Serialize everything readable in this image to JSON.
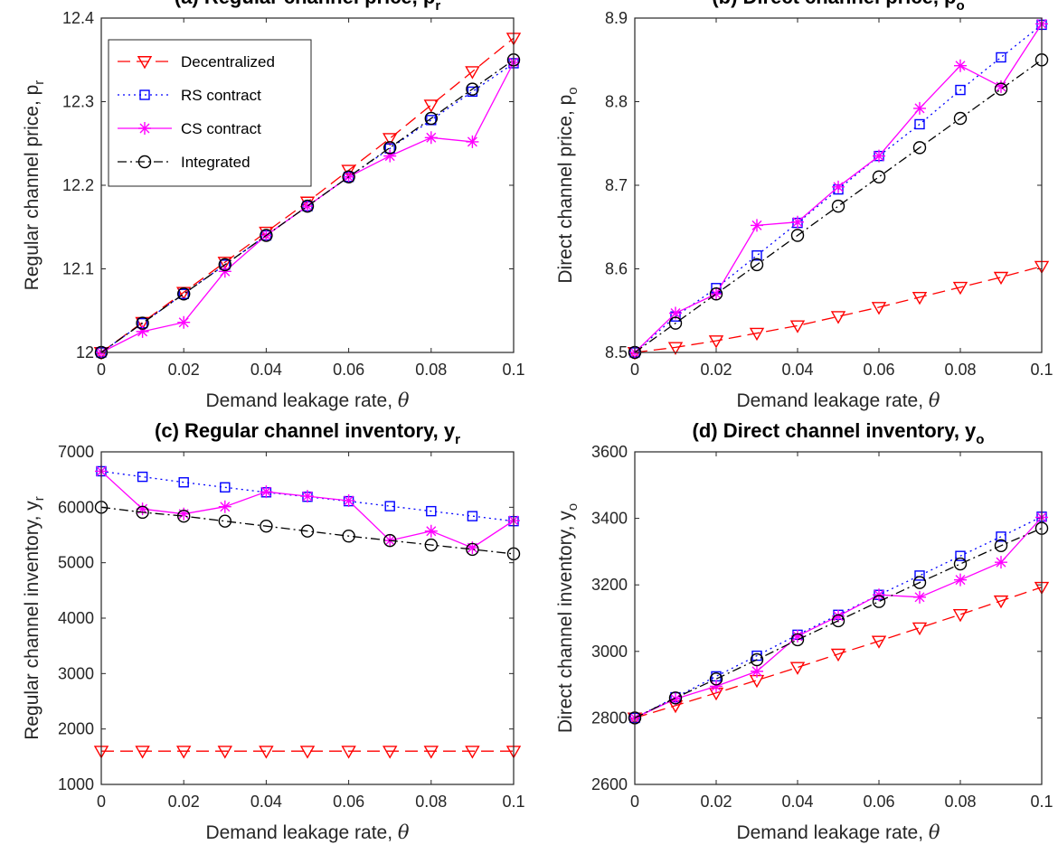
{
  "series_styles": [
    {
      "name": "Decentralized",
      "color": "#ff0000",
      "dash": "14,7",
      "marker": "triangle-down"
    },
    {
      "name": "RS contract",
      "color": "#0000ff",
      "dash": "2,4",
      "marker": "square"
    },
    {
      "name": "CS contract",
      "color": "#ff00ff",
      "dash": "",
      "marker": "asterisk"
    },
    {
      "name": "Integrated",
      "color": "#000000",
      "dash": "10,4,2,4",
      "marker": "circle"
    }
  ],
  "chart_data": [
    {
      "type": "line",
      "title": "(a) Regular channel price, p",
      "title_sub": "r",
      "xlabel": "Demand leakage rate, ",
      "xlabel_symbol": "θ",
      "ylabel": "Regular channel price, p",
      "ylabel_sub": "r",
      "xlim": [
        0,
        0.1
      ],
      "ylim": [
        12.0,
        12.4
      ],
      "xticks": [
        "0",
        "0.02",
        "0.04",
        "0.06",
        "0.08",
        "0.1"
      ],
      "yticks": [
        "12",
        "12.1",
        "12.2",
        "12.3",
        "12.4"
      ],
      "legend_position": "top-left",
      "x": [
        0,
        0.01,
        0.02,
        0.03,
        0.04,
        0.05,
        0.06,
        0.07,
        0.08,
        0.09,
        0.1
      ],
      "series": [
        {
          "name": "Decentralized",
          "values": [
            12.0,
            12.036,
            12.072,
            12.108,
            12.144,
            12.18,
            12.218,
            12.256,
            12.296,
            12.336,
            12.376
          ]
        },
        {
          "name": "RS contract",
          "values": [
            12.0,
            12.035,
            12.07,
            12.105,
            12.14,
            12.175,
            12.21,
            12.244,
            12.278,
            12.312,
            12.346
          ]
        },
        {
          "name": "CS contract",
          "values": [
            12.0,
            12.025,
            12.036,
            12.097,
            12.14,
            12.175,
            12.21,
            12.235,
            12.257,
            12.252,
            12.347
          ]
        },
        {
          "name": "Integrated",
          "values": [
            12.0,
            12.035,
            12.07,
            12.105,
            12.14,
            12.175,
            12.21,
            12.245,
            12.28,
            12.315,
            12.35
          ]
        }
      ]
    },
    {
      "type": "line",
      "title": "(b) Direct channel price, p",
      "title_sub": "o",
      "xlabel": "Demand leakage rate, ",
      "xlabel_symbol": "θ",
      "ylabel": "Direct channel price, p",
      "ylabel_sub": "o",
      "xlim": [
        0,
        0.1
      ],
      "ylim": [
        8.5,
        8.9
      ],
      "xticks": [
        "0",
        "0.02",
        "0.04",
        "0.06",
        "0.08",
        "0.1"
      ],
      "yticks": [
        "8.5",
        "8.6",
        "8.7",
        "8.8",
        "8.9"
      ],
      "x": [
        0,
        0.01,
        0.02,
        0.03,
        0.04,
        0.05,
        0.06,
        0.07,
        0.08,
        0.09,
        0.1
      ],
      "series": [
        {
          "name": "Decentralized",
          "values": [
            8.5,
            8.506,
            8.514,
            8.523,
            8.532,
            8.543,
            8.554,
            8.566,
            8.578,
            8.59,
            8.603
          ]
        },
        {
          "name": "RS contract",
          "values": [
            8.5,
            8.543,
            8.577,
            8.616,
            8.655,
            8.695,
            8.735,
            8.773,
            8.814,
            8.853,
            8.892
          ]
        },
        {
          "name": "CS contract",
          "values": [
            8.5,
            8.547,
            8.57,
            8.652,
            8.656,
            8.698,
            8.735,
            8.792,
            8.843,
            8.818,
            8.893
          ]
        },
        {
          "name": "Integrated",
          "values": [
            8.5,
            8.535,
            8.57,
            8.605,
            8.64,
            8.675,
            8.71,
            8.745,
            8.78,
            8.815,
            8.85
          ]
        }
      ]
    },
    {
      "type": "line",
      "title": "(c) Regular channel inventory, y",
      "title_sub": "r",
      "xlabel": "Demand leakage rate, ",
      "xlabel_symbol": "θ",
      "ylabel": "Regular channel inventory, y",
      "ylabel_sub": "r",
      "xlim": [
        0,
        0.1
      ],
      "ylim": [
        1000,
        7000
      ],
      "xticks": [
        "0",
        "0.02",
        "0.04",
        "0.06",
        "0.08",
        "0.1"
      ],
      "yticks": [
        "1000",
        "2000",
        "3000",
        "4000",
        "5000",
        "6000",
        "7000"
      ],
      "x": [
        0,
        0.01,
        0.02,
        0.03,
        0.04,
        0.05,
        0.06,
        0.07,
        0.08,
        0.09,
        0.1
      ],
      "series": [
        {
          "name": "Decentralized",
          "values": [
            1600,
            1600,
            1600,
            1600,
            1600,
            1600,
            1600,
            1600,
            1600,
            1600,
            1600
          ]
        },
        {
          "name": "RS contract",
          "values": [
            6650,
            6550,
            6450,
            6360,
            6270,
            6190,
            6110,
            6020,
            5930,
            5840,
            5750
          ]
        },
        {
          "name": "CS contract",
          "values": [
            6650,
            5970,
            5880,
            6010,
            6280,
            6200,
            6120,
            5400,
            5570,
            5270,
            5760
          ]
        },
        {
          "name": "Integrated",
          "values": [
            6000,
            5910,
            5840,
            5750,
            5660,
            5570,
            5480,
            5400,
            5320,
            5240,
            5160
          ]
        }
      ]
    },
    {
      "type": "line",
      "title": "(d) Direct channel inventory, y",
      "title_sub": "o",
      "xlabel": "Demand leakage rate, ",
      "xlabel_symbol": "θ",
      "ylabel": "Direct channel inventory, y",
      "ylabel_sub": "o",
      "xlim": [
        0,
        0.1
      ],
      "ylim": [
        2600,
        3600
      ],
      "xticks": [
        "0",
        "0.02",
        "0.04",
        "0.06",
        "0.08",
        "0.1"
      ],
      "yticks": [
        "2600",
        "2800",
        "3000",
        "3200",
        "3400",
        "3600"
      ],
      "x": [
        0,
        0.01,
        0.02,
        0.03,
        0.04,
        0.05,
        0.06,
        0.07,
        0.08,
        0.09,
        0.1
      ],
      "series": [
        {
          "name": "Decentralized",
          "values": [
            2800,
            2837,
            2875,
            2913,
            2952,
            2992,
            3031,
            3071,
            3111,
            3152,
            3193
          ]
        },
        {
          "name": "RS contract",
          "values": [
            2800,
            2862,
            2925,
            2987,
            3050,
            3110,
            3170,
            3228,
            3287,
            3345,
            3405
          ]
        },
        {
          "name": "CS contract",
          "values": [
            2800,
            2857,
            2895,
            2940,
            3046,
            3106,
            3170,
            3163,
            3215,
            3268,
            3403
          ]
        },
        {
          "name": "Integrated",
          "values": [
            2800,
            2860,
            2917,
            2975,
            3035,
            3092,
            3150,
            3207,
            3263,
            3318,
            3370
          ]
        }
      ]
    }
  ]
}
